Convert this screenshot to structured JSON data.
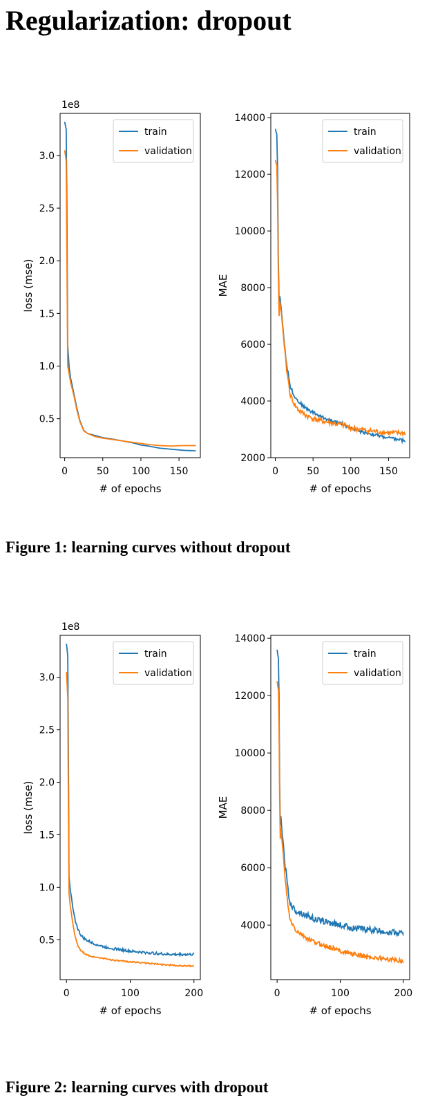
{
  "page": {
    "title": "Regularization: dropout",
    "captions": [
      "Figure 1: learning curves without dropout",
      "Figure 2: learning curves with dropout"
    ]
  },
  "colors": {
    "train": "#1f77b4",
    "validation": "#ff7f0e"
  },
  "chart_data": [
    {
      "type": "line",
      "figure": 1,
      "xlabel": "# of epochs",
      "ylabel": "loss (mse)",
      "offset_label": "1e8",
      "xlim": [
        -6,
        178
      ],
      "ylim": [
        0.13,
        3.4
      ],
      "xticks": [
        0,
        50,
        100,
        150
      ],
      "yticks": [
        0.5,
        1.0,
        1.5,
        2.0,
        2.5,
        3.0
      ],
      "ytick_labels": [
        "0.5",
        "1.0",
        "1.5",
        "2.0",
        "2.5",
        "3.0"
      ],
      "legend": "top-right",
      "series": [
        {
          "name": "train",
          "x": [
            0,
            2,
            3,
            4,
            6,
            8,
            12,
            16,
            20,
            25,
            30,
            40,
            50,
            60,
            75,
            90,
            100,
            110,
            125,
            140,
            155,
            172
          ],
          "y": [
            3.32,
            3.25,
            2.5,
            1.2,
            0.98,
            0.88,
            0.74,
            0.6,
            0.48,
            0.39,
            0.36,
            0.34,
            0.32,
            0.31,
            0.29,
            0.27,
            0.25,
            0.24,
            0.22,
            0.21,
            0.2,
            0.195
          ],
          "noise": 0.0
        },
        {
          "name": "validation",
          "x": [
            0,
            2,
            3,
            4,
            6,
            8,
            12,
            16,
            20,
            25,
            30,
            40,
            50,
            60,
            75,
            90,
            100,
            110,
            125,
            140,
            155,
            172
          ],
          "y": [
            3.05,
            2.95,
            2.0,
            1.0,
            0.92,
            0.84,
            0.72,
            0.58,
            0.47,
            0.385,
            0.36,
            0.33,
            0.315,
            0.305,
            0.29,
            0.275,
            0.265,
            0.255,
            0.245,
            0.24,
            0.245,
            0.245
          ],
          "noise": 0.0
        }
      ]
    },
    {
      "type": "line",
      "figure": 1,
      "xlabel": "# of epochs",
      "ylabel": "MAE",
      "xlim": [
        -6,
        178
      ],
      "ylim": [
        2000,
        14150
      ],
      "xticks": [
        0,
        50,
        100,
        150
      ],
      "yticks": [
        2000,
        4000,
        6000,
        8000,
        10000,
        12000,
        14000
      ],
      "ytick_labels": [
        "2000",
        "4000",
        "6000",
        "8000",
        "10000",
        "12000",
        "14000"
      ],
      "legend": "top-right",
      "series": [
        {
          "name": "train",
          "x": [
            0,
            2,
            3,
            4,
            5,
            6,
            8,
            10,
            12,
            15,
            20,
            25,
            30,
            40,
            50,
            60,
            75,
            90,
            100,
            110,
            125,
            140,
            155,
            172
          ],
          "y": [
            13600,
            13400,
            12200,
            9000,
            7500,
            7700,
            7200,
            6600,
            6000,
            5300,
            4500,
            4200,
            4000,
            3750,
            3600,
            3450,
            3300,
            3180,
            3050,
            2950,
            2850,
            2750,
            2670,
            2600
          ],
          "noise": 60
        },
        {
          "name": "validation",
          "x": [
            0,
            2,
            3,
            4,
            5,
            6,
            8,
            10,
            12,
            15,
            20,
            25,
            30,
            40,
            50,
            60,
            75,
            90,
            100,
            110,
            125,
            140,
            155,
            172
          ],
          "y": [
            12500,
            12300,
            11000,
            8500,
            7000,
            7500,
            7100,
            6500,
            5900,
            5100,
            4200,
            3900,
            3700,
            3500,
            3380,
            3300,
            3220,
            3150,
            3050,
            3000,
            2950,
            2900,
            2870,
            2870
          ],
          "noise": 90
        }
      ]
    },
    {
      "type": "line",
      "figure": 2,
      "xlabel": "# of epochs",
      "ylabel": "loss (mse)",
      "offset_label": "1e8",
      "xlim": [
        -10,
        210
      ],
      "ylim": [
        0.12,
        3.4
      ],
      "xticks": [
        0,
        100,
        200
      ],
      "yticks": [
        0.5,
        1.0,
        1.5,
        2.0,
        2.5,
        3.0
      ],
      "ytick_labels": [
        "0.5",
        "1.0",
        "1.5",
        "2.0",
        "2.5",
        "3.0"
      ],
      "legend": "top-right",
      "series": [
        {
          "name": "train",
          "x": [
            0,
            2,
            3,
            4,
            6,
            8,
            10,
            14,
            18,
            22,
            26,
            30,
            40,
            50,
            60,
            80,
            100,
            120,
            140,
            160,
            180,
            200
          ],
          "y": [
            3.32,
            3.2,
            2.3,
            1.1,
            0.97,
            0.9,
            0.8,
            0.68,
            0.6,
            0.55,
            0.52,
            0.5,
            0.47,
            0.45,
            0.43,
            0.41,
            0.39,
            0.38,
            0.37,
            0.36,
            0.36,
            0.36
          ],
          "noise": 0.012
        },
        {
          "name": "validation",
          "x": [
            0,
            2,
            3,
            4,
            6,
            8,
            10,
            14,
            18,
            22,
            26,
            30,
            40,
            50,
            60,
            80,
            100,
            120,
            140,
            160,
            180,
            200
          ],
          "y": [
            3.05,
            2.8,
            1.8,
            0.95,
            0.82,
            0.74,
            0.65,
            0.52,
            0.44,
            0.4,
            0.38,
            0.36,
            0.34,
            0.33,
            0.32,
            0.3,
            0.29,
            0.28,
            0.27,
            0.26,
            0.25,
            0.25
          ],
          "noise": 0.006
        }
      ]
    },
    {
      "type": "line",
      "figure": 2,
      "xlabel": "# of epochs",
      "ylabel": "MAE",
      "xlim": [
        -10,
        210
      ],
      "ylim": [
        2100,
        14100
      ],
      "xticks": [
        0,
        100,
        200
      ],
      "yticks": [
        4000,
        6000,
        8000,
        10000,
        12000,
        14000
      ],
      "ytick_labels": [
        "4000",
        "6000",
        "8000",
        "10000",
        "12000",
        "14000"
      ],
      "legend": "top-right",
      "series": [
        {
          "name": "train",
          "x": [
            0,
            2,
            3,
            4,
            5,
            6,
            8,
            10,
            12,
            16,
            20,
            25,
            30,
            40,
            50,
            60,
            80,
            100,
            120,
            140,
            160,
            180,
            200
          ],
          "y": [
            13600,
            13300,
            12000,
            9000,
            7500,
            7800,
            7200,
            6800,
            6200,
            5500,
            4800,
            4600,
            4500,
            4400,
            4300,
            4200,
            4100,
            4000,
            3900,
            3850,
            3800,
            3750,
            3700
          ],
          "noise": 110
        },
        {
          "name": "validation",
          "x": [
            0,
            2,
            3,
            4,
            5,
            6,
            8,
            10,
            12,
            16,
            20,
            25,
            30,
            40,
            50,
            60,
            80,
            100,
            120,
            140,
            160,
            180,
            200
          ],
          "y": [
            12500,
            12200,
            11000,
            8500,
            7000,
            7400,
            6900,
            6400,
            5800,
            4900,
            4200,
            4000,
            3800,
            3650,
            3500,
            3400,
            3250,
            3100,
            3000,
            2900,
            2850,
            2800,
            2750
          ],
          "noise": 80
        }
      ]
    }
  ]
}
